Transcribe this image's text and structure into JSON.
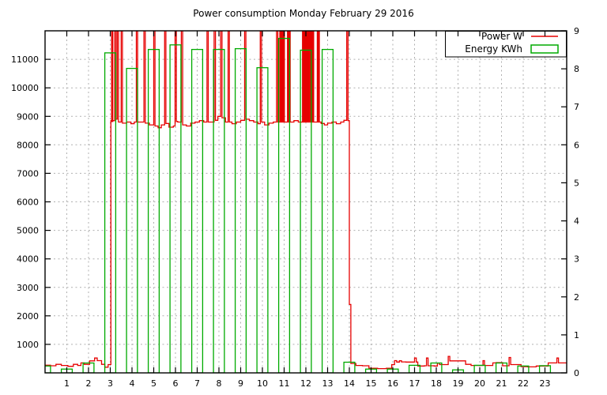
{
  "chart_data": {
    "type": "line+bar",
    "title": "Power consumption Monday February 29 2016",
    "x": {
      "min": 0,
      "max": 24,
      "unit": "hour",
      "ticks": [
        1,
        2,
        3,
        4,
        5,
        6,
        7,
        8,
        9,
        10,
        11,
        12,
        13,
        14,
        15,
        16,
        17,
        18,
        19,
        20,
        21,
        22,
        23
      ]
    },
    "y_left": {
      "min": 0,
      "max": 12000,
      "unit": "W",
      "ticks": [
        1000,
        2000,
        3000,
        4000,
        5000,
        6000,
        7000,
        8000,
        9000,
        10000,
        11000
      ]
    },
    "y_right": {
      "min": 0,
      "max": 9,
      "unit": "KWh",
      "ticks": [
        0,
        1,
        2,
        3,
        4,
        5,
        6,
        7,
        8,
        9
      ]
    },
    "grid": true,
    "legend_position": "top-right",
    "colors": {
      "power": "#e60000",
      "energy": "#00aa00",
      "grid": "#b0b0b0",
      "axis": "#000000",
      "background": "#ffffff"
    },
    "series": [
      {
        "name": "Power W",
        "type": "line",
        "axis": "left",
        "unit": "W",
        "points": [
          [
            0,
            270
          ],
          [
            0.25,
            250
          ],
          [
            0.5,
            300
          ],
          [
            0.75,
            260
          ],
          [
            1.05,
            230
          ],
          [
            1.3,
            300
          ],
          [
            1.5,
            260
          ],
          [
            1.65,
            350
          ],
          [
            1.8,
            300
          ],
          [
            2.05,
            420
          ],
          [
            2.28,
            520
          ],
          [
            2.4,
            430
          ],
          [
            2.6,
            300
          ],
          [
            2.75,
            200
          ],
          [
            2.9,
            290
          ],
          [
            3.03,
            8850
          ],
          [
            3.2,
            12600
          ],
          [
            3.26,
            8900
          ],
          [
            3.32,
            12600
          ],
          [
            3.38,
            8800
          ],
          [
            3.5,
            12600
          ],
          [
            3.56,
            8760
          ],
          [
            3.75,
            8800
          ],
          [
            3.95,
            8740
          ],
          [
            4.1,
            8800
          ],
          [
            4.2,
            12600
          ],
          [
            4.26,
            8800
          ],
          [
            4.55,
            12600
          ],
          [
            4.61,
            8760
          ],
          [
            4.8,
            8700
          ],
          [
            5.0,
            12600
          ],
          [
            5.06,
            8660
          ],
          [
            5.2,
            8600
          ],
          [
            5.35,
            8700
          ],
          [
            5.5,
            12600
          ],
          [
            5.56,
            8750
          ],
          [
            5.7,
            8620
          ],
          [
            5.9,
            8660
          ],
          [
            5.98,
            12600
          ],
          [
            6.04,
            8820
          ],
          [
            6.1,
            8800
          ],
          [
            6.27,
            12600
          ],
          [
            6.33,
            8700
          ],
          [
            6.5,
            8660
          ],
          [
            6.7,
            8760
          ],
          [
            6.9,
            8800
          ],
          [
            7.1,
            8850
          ],
          [
            7.3,
            8800
          ],
          [
            7.45,
            12600
          ],
          [
            7.51,
            8800
          ],
          [
            7.78,
            12600
          ],
          [
            7.84,
            8860
          ],
          [
            7.95,
            9000
          ],
          [
            8.08,
            12600
          ],
          [
            8.14,
            8950
          ],
          [
            8.3,
            8800
          ],
          [
            8.42,
            12600
          ],
          [
            8.48,
            8800
          ],
          [
            8.6,
            8740
          ],
          [
            8.8,
            8800
          ],
          [
            9.0,
            8860
          ],
          [
            9.18,
            12600
          ],
          [
            9.24,
            8900
          ],
          [
            9.4,
            8850
          ],
          [
            9.6,
            8800
          ],
          [
            9.8,
            8740
          ],
          [
            9.9,
            12600
          ],
          [
            9.96,
            8800
          ],
          [
            10.1,
            8700
          ],
          [
            10.3,
            8760
          ],
          [
            10.5,
            8800
          ],
          [
            10.65,
            12600
          ],
          [
            10.71,
            8800
          ],
          [
            11.45,
            8850
          ],
          [
            11.65,
            8800
          ],
          [
            12.7,
            8750
          ],
          [
            12.85,
            8700
          ],
          [
            13.0,
            8760
          ],
          [
            13.2,
            8800
          ],
          [
            13.4,
            8740
          ],
          [
            13.6,
            8800
          ],
          [
            13.75,
            8860
          ],
          [
            13.88,
            12600
          ],
          [
            13.94,
            8850
          ],
          [
            14.0,
            2400
          ],
          [
            14.07,
            330
          ],
          [
            14.3,
            260
          ],
          [
            14.6,
            250
          ],
          [
            14.9,
            160
          ],
          [
            15.3,
            150
          ],
          [
            15.7,
            160
          ],
          [
            15.95,
            290
          ],
          [
            16.08,
            430
          ],
          [
            16.18,
            380
          ],
          [
            16.3,
            425
          ],
          [
            16.4,
            385
          ],
          [
            16.6,
            380
          ],
          [
            17.0,
            520
          ],
          [
            17.08,
            380
          ],
          [
            17.15,
            240
          ],
          [
            17.45,
            250
          ],
          [
            17.55,
            520
          ],
          [
            17.62,
            250
          ],
          [
            17.9,
            240
          ],
          [
            18.05,
            340
          ],
          [
            18.15,
            290
          ],
          [
            18.55,
            580
          ],
          [
            18.62,
            420
          ],
          [
            19.35,
            300
          ],
          [
            19.6,
            260
          ],
          [
            19.9,
            260
          ],
          [
            20.15,
            430
          ],
          [
            20.22,
            260
          ],
          [
            20.6,
            350
          ],
          [
            20.75,
            360
          ],
          [
            21.05,
            250
          ],
          [
            21.35,
            540
          ],
          [
            21.42,
            290
          ],
          [
            21.7,
            290
          ],
          [
            21.9,
            220
          ],
          [
            22.2,
            210
          ],
          [
            22.6,
            240
          ],
          [
            22.9,
            240
          ],
          [
            23.15,
            350
          ],
          [
            23.55,
            520
          ],
          [
            23.62,
            350
          ],
          [
            23.95,
            350
          ]
        ],
        "overload_blocks_hours": [
          [
            3.04,
            3.14
          ],
          [
            10.78,
            11.04
          ],
          [
            11.13,
            11.3
          ],
          [
            11.82,
            12.38
          ],
          [
            12.5,
            12.64
          ]
        ]
      },
      {
        "name": "Energy KWh",
        "type": "bar",
        "axis": "right",
        "unit": "KWh",
        "bar_width_hours": 0.5,
        "categories": [
          0,
          1,
          2,
          3,
          4,
          5,
          6,
          7,
          8,
          9,
          10,
          11,
          12,
          13,
          14,
          15,
          16,
          17,
          18,
          19,
          20,
          21,
          22,
          23
        ],
        "values": [
          0.18,
          0.1,
          0.26,
          8.42,
          8.01,
          8.51,
          8.63,
          8.51,
          8.51,
          8.53,
          8.03,
          8.8,
          8.49,
          8.51,
          0.28,
          0.1,
          0.1,
          0.2,
          0.26,
          0.08,
          0.2,
          0.26,
          0.18,
          0.19
        ]
      }
    ]
  }
}
